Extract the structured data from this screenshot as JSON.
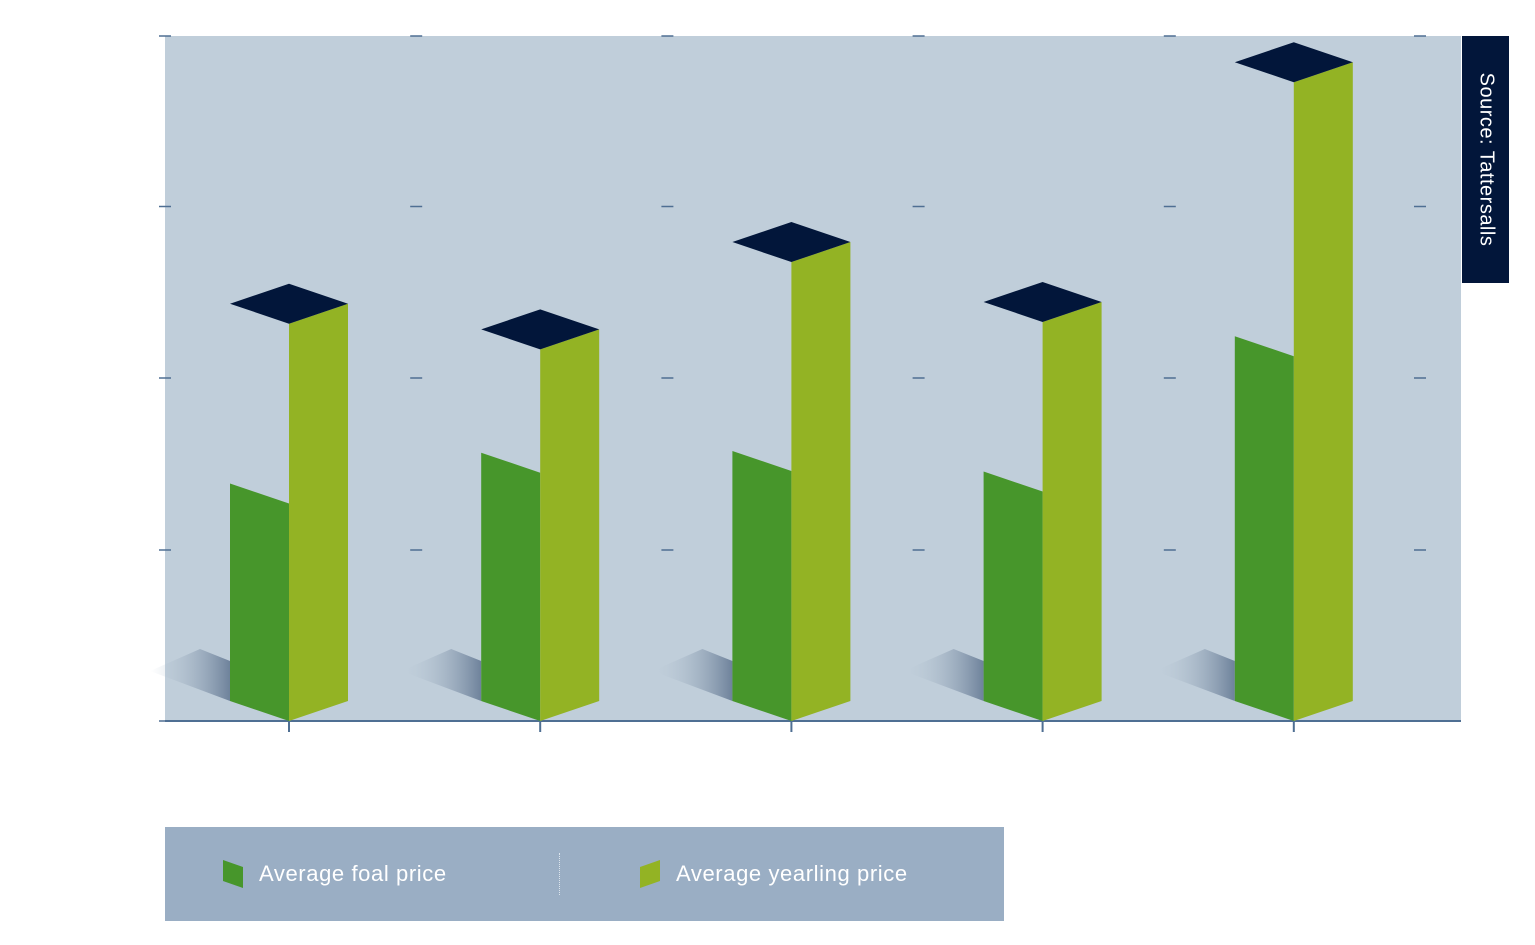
{
  "source_label": "Source: Tattersalls",
  "colors": {
    "plot_bg": "#c0ceda",
    "foal": "#47962b",
    "yearling": "#93b324",
    "cap": "#02163a",
    "axis": "#4f6f93",
    "legend_bg": "#9aaec4"
  },
  "chart_data": {
    "type": "bar",
    "title": "",
    "xlabel": "",
    "ylabel": "",
    "categories": [
      "",
      "",
      "",
      "",
      ""
    ],
    "ylim": [
      0,
      4
    ],
    "grid": false,
    "legend_position": "bottom",
    "series": [
      {
        "name": "Average foal price",
        "values": [
          1.27,
          1.45,
          1.46,
          1.34,
          2.13
        ]
      },
      {
        "name": "Average yearling price",
        "values": [
          2.32,
          2.17,
          2.68,
          2.33,
          3.73
        ]
      }
    ]
  },
  "legend": {
    "items": [
      {
        "label": "Average foal price",
        "icon": "foal-swatch-icon"
      },
      {
        "label": "Average yearling price",
        "icon": "yearling-swatch-icon"
      }
    ]
  }
}
